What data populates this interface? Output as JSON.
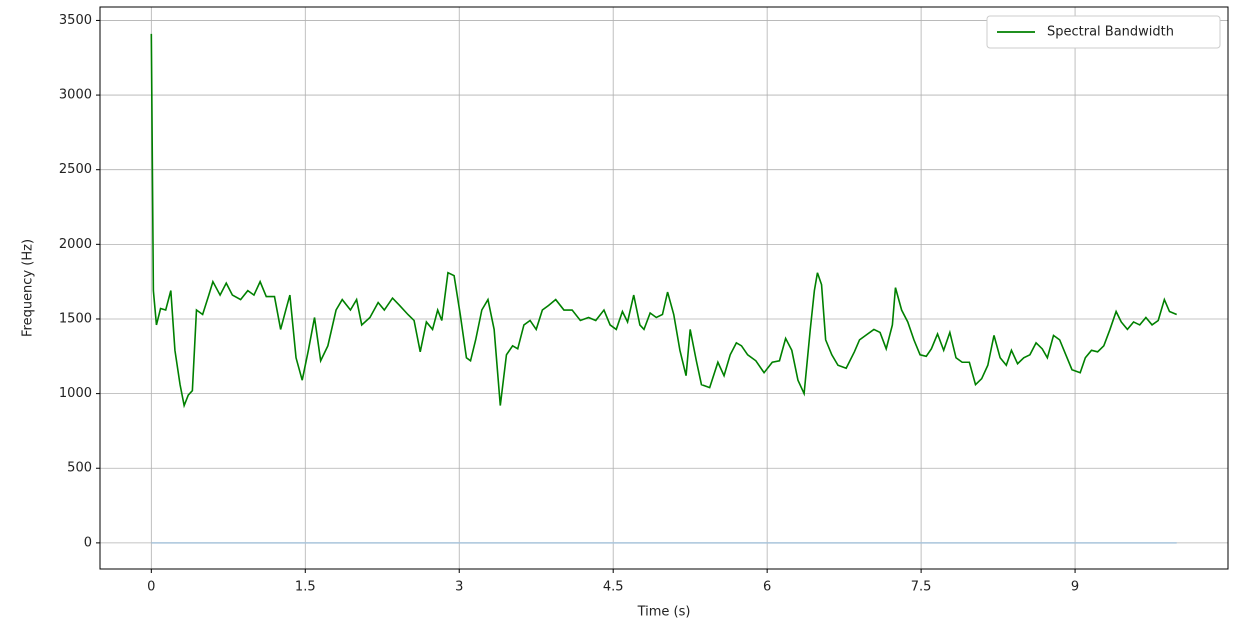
{
  "chart_data": {
    "type": "line",
    "xlabel": "Time (s)",
    "ylabel": "Frequency (Hz)",
    "xlim": [
      -0.5,
      10.49
    ],
    "ylim": [
      -175,
      3590
    ],
    "xticks": [
      0,
      1.5,
      3,
      4.5,
      6,
      7.5,
      9
    ],
    "yticks": [
      0,
      500,
      1000,
      1500,
      2000,
      2500,
      3000,
      3500
    ],
    "grid": true,
    "legend": "upper right",
    "series": [
      {
        "name": "Spectral Bandwidth",
        "color": "#008000",
        "x": [
          0,
          0.02,
          0.05,
          0.09,
          0.14,
          0.19,
          0.23,
          0.28,
          0.32,
          0.36,
          0.4,
          0.44,
          0.5,
          0.56,
          0.6,
          0.67,
          0.73,
          0.79,
          0.87,
          0.94,
          1.0,
          1.06,
          1.12,
          1.2,
          1.26,
          1.31,
          1.35,
          1.41,
          1.47,
          1.53,
          1.59,
          1.65,
          1.72,
          1.8,
          1.86,
          1.94,
          2.0,
          2.05,
          2.13,
          2.21,
          2.27,
          2.35,
          2.42,
          2.5,
          2.56,
          2.62,
          2.68,
          2.74,
          2.79,
          2.83,
          2.89,
          2.95,
          3.01,
          3.07,
          3.11,
          3.16,
          3.22,
          3.28,
          3.34,
          3.4,
          3.46,
          3.52,
          3.57,
          3.63,
          3.69,
          3.75,
          3.81,
          3.87,
          3.94,
          4.02,
          4.1,
          4.18,
          4.26,
          4.33,
          4.41,
          4.47,
          4.53,
          4.59,
          4.64,
          4.7,
          4.76,
          4.8,
          4.86,
          4.92,
          4.98,
          5.03,
          5.09,
          5.15,
          5.21,
          5.25,
          5.31,
          5.36,
          5.44,
          5.52,
          5.58,
          5.64,
          5.7,
          5.75,
          5.81,
          5.89,
          5.97,
          6.05,
          6.12,
          6.18,
          6.24,
          6.3,
          6.36,
          6.42,
          6.46,
          6.49,
          6.53,
          6.57,
          6.63,
          6.69,
          6.77,
          6.85,
          6.9,
          6.96,
          7.04,
          7.1,
          7.16,
          7.22,
          7.25,
          7.31,
          7.37,
          7.43,
          7.49,
          7.55,
          7.6,
          7.66,
          7.72,
          7.78,
          7.84,
          7.9,
          7.97,
          8.03,
          8.09,
          8.15,
          8.21,
          8.27,
          8.33,
          8.38,
          8.44,
          8.5,
          8.56,
          8.62,
          8.68,
          8.73,
          8.79,
          8.85,
          8.91,
          8.97,
          9.05,
          9.1,
          9.16,
          9.22,
          9.28,
          9.34,
          9.4,
          9.45,
          9.51,
          9.57,
          9.63,
          9.69,
          9.75,
          9.81,
          9.87,
          9.92,
          9.99
        ],
        "values": [
          3410,
          1690,
          1460,
          1570,
          1560,
          1690,
          1290,
          1060,
          920,
          990,
          1020,
          1560,
          1530,
          1660,
          1750,
          1660,
          1740,
          1660,
          1630,
          1690,
          1660,
          1750,
          1650,
          1650,
          1430,
          1560,
          1660,
          1240,
          1090,
          1290,
          1510,
          1220,
          1320,
          1560,
          1630,
          1560,
          1630,
          1460,
          1510,
          1610,
          1560,
          1640,
          1590,
          1530,
          1490,
          1280,
          1480,
          1430,
          1560,
          1490,
          1810,
          1790,
          1530,
          1240,
          1220,
          1360,
          1560,
          1630,
          1430,
          920,
          1260,
          1320,
          1300,
          1460,
          1490,
          1430,
          1560,
          1590,
          1630,
          1560,
          1560,
          1490,
          1510,
          1490,
          1560,
          1460,
          1430,
          1550,
          1480,
          1660,
          1460,
          1430,
          1540,
          1510,
          1530,
          1680,
          1530,
          1290,
          1120,
          1430,
          1220,
          1060,
          1040,
          1210,
          1120,
          1260,
          1340,
          1320,
          1260,
          1220,
          1140,
          1210,
          1220,
          1370,
          1290,
          1090,
          1000,
          1430,
          1690,
          1810,
          1730,
          1360,
          1260,
          1190,
          1170,
          1280,
          1360,
          1390,
          1430,
          1410,
          1300,
          1460,
          1710,
          1560,
          1480,
          1360,
          1260,
          1250,
          1300,
          1400,
          1290,
          1410,
          1240,
          1210,
          1210,
          1060,
          1100,
          1190,
          1390,
          1240,
          1190,
          1290,
          1200,
          1240,
          1260,
          1340,
          1300,
          1240,
          1390,
          1360,
          1260,
          1160,
          1140,
          1240,
          1290,
          1280,
          1320,
          1430,
          1550,
          1480,
          1430,
          1480,
          1460,
          1510,
          1460,
          1490,
          1630,
          1550,
          1530
        ]
      },
      {
        "color": "#a9c4db",
        "x": [
          0,
          9.99
        ],
        "values": [
          0,
          0
        ]
      }
    ]
  }
}
